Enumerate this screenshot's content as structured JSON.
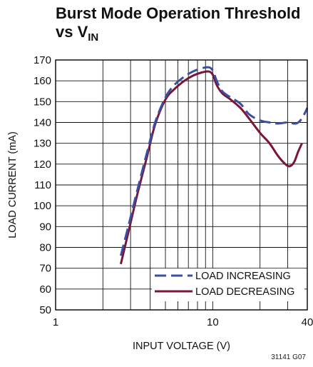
{
  "chart_data": {
    "type": "line",
    "title": "Burst Mode Operation Threshold",
    "title_line2_main": "vs V",
    "title_line2_sub": "IN",
    "xlabel": "INPUT VOLTAGE (V)",
    "ylabel": "LOAD CURRENT (mA)",
    "x_scale": "log",
    "xlim": [
      1,
      40
    ],
    "ylim": [
      50,
      170
    ],
    "x_ticks": [
      1,
      10,
      40
    ],
    "y_ticks": [
      50,
      60,
      70,
      80,
      90,
      100,
      110,
      120,
      130,
      140,
      150,
      160,
      170
    ],
    "grid": true,
    "legend_position": "bottom-right",
    "series": [
      {
        "name": "LOAD INCREASING",
        "color": "#3a4fa3",
        "dash": "dashed",
        "x": [
          2.6,
          2.9,
          3.3,
          3.8,
          4.3,
          5.0,
          5.7,
          6.6,
          7.5,
          8.5,
          9.4,
          10.0,
          10.6,
          11.5,
          13.0,
          15.0,
          17.0,
          20.0,
          23.0,
          26.0,
          30.0,
          34.0,
          37.0,
          40.0
        ],
        "y": [
          76,
          90,
          107,
          125,
          140,
          152,
          158,
          162,
          164.5,
          166,
          166.5,
          165,
          160,
          155,
          152,
          149,
          144,
          141,
          140,
          139.5,
          140,
          139.5,
          142,
          147
        ]
      },
      {
        "name": "LOAD DECREASING",
        "color": "#7a1535",
        "dash": "solid",
        "x": [
          2.6,
          2.9,
          3.3,
          3.8,
          4.3,
          5.0,
          5.7,
          6.6,
          7.5,
          8.5,
          9.4,
          10.0,
          10.6,
          11.5,
          13.0,
          15.0,
          17.0,
          20.0,
          23.0,
          26.0,
          29.0,
          31.0,
          33.0,
          35.0,
          37.0
        ],
        "y": [
          72,
          87,
          105,
          123,
          139,
          151,
          156,
          160,
          162.5,
          164,
          164.5,
          163,
          158,
          154,
          151,
          147,
          142,
          135,
          130,
          124,
          120,
          119,
          121,
          126,
          130
        ]
      }
    ]
  },
  "figure_id": "31141 G07"
}
